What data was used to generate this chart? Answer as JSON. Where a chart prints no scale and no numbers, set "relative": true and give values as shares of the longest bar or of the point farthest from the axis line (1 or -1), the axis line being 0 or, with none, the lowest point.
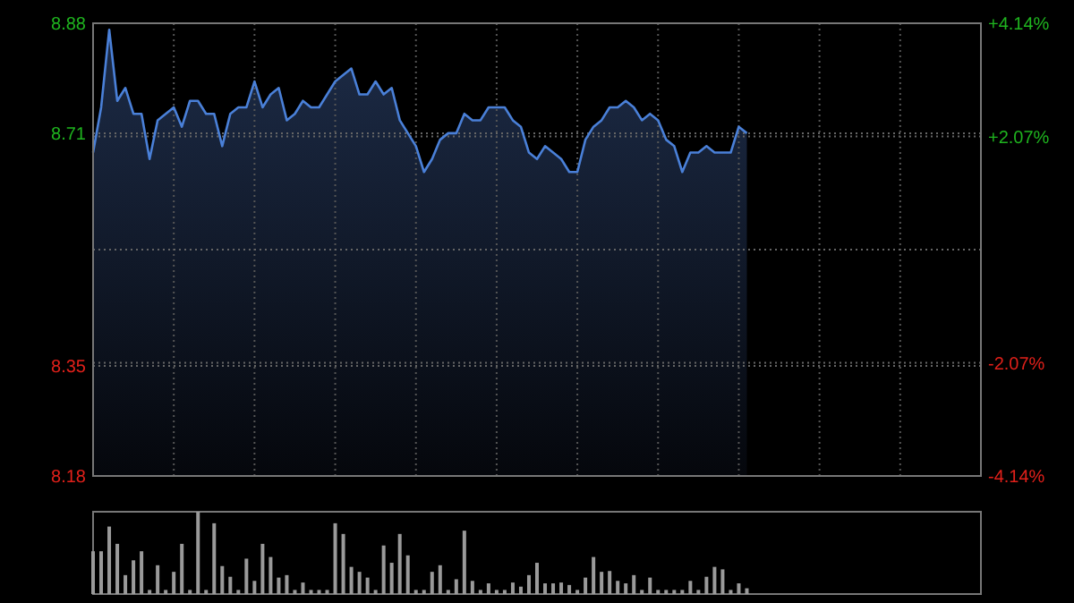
{
  "chart_data": [
    {
      "type": "area",
      "categories": [
        null,
        null,
        null,
        null,
        null,
        null,
        null,
        null,
        null,
        null,
        null,
        null,
        null,
        null,
        null,
        null,
        null,
        null,
        null,
        null,
        null,
        null,
        null,
        null,
        null,
        null,
        null,
        null,
        null,
        null,
        null,
        null,
        null,
        null,
        null,
        null,
        null,
        null,
        null,
        null,
        null,
        null,
        null,
        null,
        null,
        null,
        null,
        null,
        null,
        null,
        null,
        null,
        null,
        null,
        null,
        null,
        null,
        null,
        null,
        null,
        null,
        null,
        null,
        null,
        null,
        null,
        null,
        null,
        null,
        null,
        null,
        null,
        null,
        null,
        null,
        null,
        null,
        null,
        null,
        null,
        null,
        null
      ],
      "series": [
        {
          "color": "#4a80d8",
          "values": [
            8.68,
            8.75,
            8.87,
            8.76,
            8.78,
            8.74,
            8.74,
            8.67,
            8.73,
            8.74,
            8.75,
            8.72,
            8.76,
            8.76,
            8.74,
            8.74,
            8.69,
            8.74,
            8.75,
            8.75,
            8.79,
            8.75,
            8.77,
            8.78,
            8.73,
            8.74,
            8.76,
            8.75,
            8.75,
            8.77,
            8.79,
            8.8,
            8.81,
            8.77,
            8.77,
            8.79,
            8.77,
            8.78,
            8.73,
            8.71,
            8.69,
            8.65,
            8.67,
            8.7,
            8.71,
            8.71,
            8.74,
            8.73,
            8.73,
            8.75,
            8.75,
            8.75,
            8.73,
            8.72,
            8.68,
            8.67,
            8.69,
            8.68,
            8.67,
            8.65,
            8.65,
            8.7,
            8.72,
            8.73,
            8.75,
            8.75,
            8.76,
            8.75,
            8.73,
            8.74,
            8.73,
            8.7,
            8.69,
            8.65,
            8.68,
            8.68,
            8.69,
            8.68,
            8.68,
            8.68,
            8.72,
            8.71
          ]
        }
      ],
      "ylim": [
        8.18,
        8.88
      ],
      "yticks": [
        8.18,
        8.35,
        {
          "value": 8.53,
          "label": null
        },
        8.71,
        8.88
      ],
      "y2lim": [
        -4.14,
        4.14
      ],
      "y2ticks": [
        {
          "value": -4.14,
          "label": "-4.14%"
        },
        {
          "value": -2.07,
          "label": "-2.07%"
        },
        {
          "value": 0,
          "label": null
        },
        {
          "value": 2.07,
          "label": "+2.07%"
        },
        {
          "value": 4.14,
          "label": "+4.14%"
        }
      ],
      "grid": true,
      "line_style": "solid"
    },
    {
      "type": "bar",
      "relative": true,
      "categories": [
        null,
        null,
        null,
        null,
        null,
        null,
        null,
        null,
        null,
        null,
        null,
        null,
        null,
        null,
        null,
        null,
        null,
        null,
        null,
        null,
        null,
        null,
        null,
        null,
        null,
        null,
        null,
        null,
        null,
        null,
        null,
        null,
        null,
        null,
        null,
        null,
        null,
        null,
        null,
        null,
        null,
        null,
        null,
        null,
        null,
        null,
        null,
        null,
        null,
        null,
        null,
        null,
        null,
        null,
        null,
        null,
        null,
        null,
        null,
        null,
        null,
        null,
        null,
        null,
        null,
        null,
        null,
        null,
        null,
        null,
        null,
        null,
        null,
        null,
        null,
        null,
        null,
        null,
        null,
        null,
        null,
        null
      ],
      "values": [
        0.52,
        0.52,
        0.82,
        0.61,
        0.23,
        0.41,
        0.52,
        0.05,
        0.35,
        0.05,
        0.27,
        0.61,
        0.05,
        1,
        0.05,
        0.86,
        0.34,
        0.21,
        0.05,
        0.43,
        0.16,
        0.61,
        0.45,
        0.2,
        0.23,
        0.05,
        0.14,
        0.05,
        0.05,
        0.05,
        0.86,
        0.73,
        0.33,
        0.27,
        0.2,
        0.05,
        0.59,
        0.38,
        0.73,
        0.47,
        0.05,
        0.05,
        0.27,
        0.35,
        0.05,
        0.18,
        0.77,
        0.16,
        0.05,
        0.13,
        0.05,
        0.05,
        0.14,
        0.09,
        0.23,
        0.38,
        0.13,
        0.13,
        0.14,
        0.11,
        0.05,
        0.2,
        0.45,
        0.27,
        0.28,
        0.16,
        0.13,
        0.23,
        0.05,
        0.2,
        0.05,
        0.05,
        0.05,
        0.05,
        0.16,
        0.05,
        0.21,
        0.33,
        0.3,
        0.05,
        0.13,
        0.07
      ],
      "color": "#9a9a9a"
    }
  ]
}
